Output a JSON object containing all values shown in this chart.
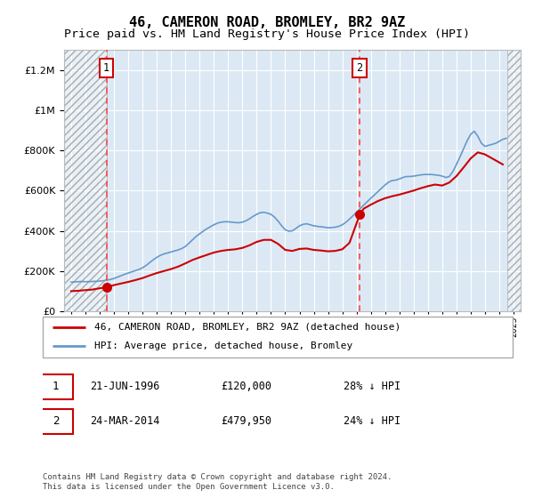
{
  "title": "46, CAMERON ROAD, BROMLEY, BR2 9AZ",
  "subtitle": "Price paid vs. HM Land Registry's House Price Index (HPI)",
  "title_fontsize": 11,
  "subtitle_fontsize": 9.5,
  "background_color": "#ffffff",
  "plot_bg_color": "#dce9f5",
  "yticks": [
    0,
    200000,
    400000,
    600000,
    800000,
    1000000,
    1200000
  ],
  "ylim": [
    0,
    1300000
  ],
  "xlim_start": 1993.5,
  "xlim_end": 2025.5,
  "sale1_date": "21-JUN-1996",
  "sale1_price": 120000,
  "sale1_label": "28% ↓ HPI",
  "sale1_year": 1996.47,
  "sale2_date": "24-MAR-2014",
  "sale2_price": 479950,
  "sale2_label": "24% ↓ HPI",
  "sale2_year": 2014.22,
  "red_line_color": "#cc0000",
  "blue_line_color": "#6699cc",
  "dashed_line_color": "#ff4444",
  "legend_label_red": "46, CAMERON ROAD, BROMLEY, BR2 9AZ (detached house)",
  "legend_label_blue": "HPI: Average price, detached house, Bromley",
  "footer_text": "Contains HM Land Registry data © Crown copyright and database right 2024.\nThis data is licensed under the Open Government Licence v3.0.",
  "hpi_years": [
    1994.0,
    1994.25,
    1994.5,
    1994.75,
    1995.0,
    1995.25,
    1995.5,
    1995.75,
    1996.0,
    1996.25,
    1996.5,
    1996.75,
    1997.0,
    1997.25,
    1997.5,
    1997.75,
    1998.0,
    1998.25,
    1998.5,
    1998.75,
    1999.0,
    1999.25,
    1999.5,
    1999.75,
    2000.0,
    2000.25,
    2000.5,
    2000.75,
    2001.0,
    2001.25,
    2001.5,
    2001.75,
    2002.0,
    2002.25,
    2002.5,
    2002.75,
    2003.0,
    2003.25,
    2003.5,
    2003.75,
    2004.0,
    2004.25,
    2004.5,
    2004.75,
    2005.0,
    2005.25,
    2005.5,
    2005.75,
    2006.0,
    2006.25,
    2006.5,
    2006.75,
    2007.0,
    2007.25,
    2007.5,
    2007.75,
    2008.0,
    2008.25,
    2008.5,
    2008.75,
    2009.0,
    2009.25,
    2009.5,
    2009.75,
    2010.0,
    2010.25,
    2010.5,
    2010.75,
    2011.0,
    2011.25,
    2011.5,
    2011.75,
    2012.0,
    2012.25,
    2012.5,
    2012.75,
    2013.0,
    2013.25,
    2013.5,
    2013.75,
    2014.0,
    2014.25,
    2014.5,
    2014.75,
    2015.0,
    2015.25,
    2015.5,
    2015.75,
    2016.0,
    2016.25,
    2016.5,
    2016.75,
    2017.0,
    2017.25,
    2017.5,
    2017.75,
    2018.0,
    2018.25,
    2018.5,
    2018.75,
    2019.0,
    2019.25,
    2019.5,
    2019.75,
    2020.0,
    2020.25,
    2020.5,
    2020.75,
    2021.0,
    2021.25,
    2021.5,
    2021.75,
    2022.0,
    2022.25,
    2022.5,
    2022.75,
    2023.0,
    2023.25,
    2023.5,
    2023.75,
    2024.0,
    2024.25,
    2024.5
  ],
  "hpi_values": [
    145000,
    146000,
    147000,
    148000,
    147000,
    147500,
    148000,
    149000,
    150000,
    152000,
    155000,
    158000,
    163000,
    170000,
    177000,
    184000,
    190000,
    196000,
    202000,
    208000,
    216000,
    228000,
    242000,
    256000,
    268000,
    278000,
    285000,
    290000,
    295000,
    300000,
    305000,
    312000,
    322000,
    338000,
    355000,
    372000,
    385000,
    398000,
    410000,
    420000,
    430000,
    438000,
    443000,
    445000,
    445000,
    443000,
    441000,
    440000,
    443000,
    450000,
    460000,
    472000,
    482000,
    490000,
    492000,
    488000,
    482000,
    468000,
    448000,
    425000,
    405000,
    398000,
    400000,
    412000,
    425000,
    432000,
    435000,
    430000,
    425000,
    422000,
    420000,
    418000,
    415000,
    416000,
    418000,
    422000,
    430000,
    442000,
    458000,
    475000,
    492000,
    510000,
    528000,
    545000,
    562000,
    578000,
    595000,
    612000,
    628000,
    642000,
    650000,
    652000,
    658000,
    665000,
    670000,
    670000,
    672000,
    675000,
    678000,
    680000,
    680000,
    680000,
    678000,
    676000,
    672000,
    665000,
    670000,
    695000,
    730000,
    768000,
    808000,
    848000,
    880000,
    895000,
    870000,
    835000,
    820000,
    825000,
    830000,
    835000,
    845000,
    855000,
    860000
  ],
  "pp_years": [
    1994.0,
    1994.5,
    1995.0,
    1995.5,
    1996.47,
    1997.0,
    1997.5,
    1998.0,
    1998.5,
    1999.0,
    1999.5,
    2000.0,
    2000.5,
    2001.0,
    2001.5,
    2002.0,
    2002.5,
    2003.0,
    2003.5,
    2004.0,
    2004.5,
    2005.0,
    2005.5,
    2006.0,
    2006.5,
    2007.0,
    2007.5,
    2008.0,
    2008.5,
    2009.0,
    2009.5,
    2010.0,
    2010.5,
    2011.0,
    2011.5,
    2012.0,
    2012.5,
    2013.0,
    2013.5,
    2014.22,
    2014.5,
    2015.0,
    2015.5,
    2016.0,
    2016.5,
    2017.0,
    2017.5,
    2018.0,
    2018.5,
    2019.0,
    2019.5,
    2020.0,
    2020.5,
    2021.0,
    2021.5,
    2022.0,
    2022.5,
    2023.0,
    2023.5,
    2024.0,
    2024.25
  ],
  "pp_values": [
    100000,
    102000,
    105000,
    108000,
    120000,
    130000,
    138000,
    146000,
    155000,
    165000,
    178000,
    190000,
    200000,
    210000,
    222000,
    238000,
    255000,
    268000,
    280000,
    292000,
    300000,
    305000,
    308000,
    315000,
    328000,
    345000,
    355000,
    355000,
    335000,
    305000,
    300000,
    310000,
    312000,
    305000,
    302000,
    298000,
    300000,
    308000,
    340000,
    479950,
    510000,
    530000,
    548000,
    562000,
    572000,
    580000,
    590000,
    600000,
    612000,
    622000,
    630000,
    625000,
    640000,
    672000,
    715000,
    760000,
    790000,
    780000,
    760000,
    740000,
    730000
  ]
}
